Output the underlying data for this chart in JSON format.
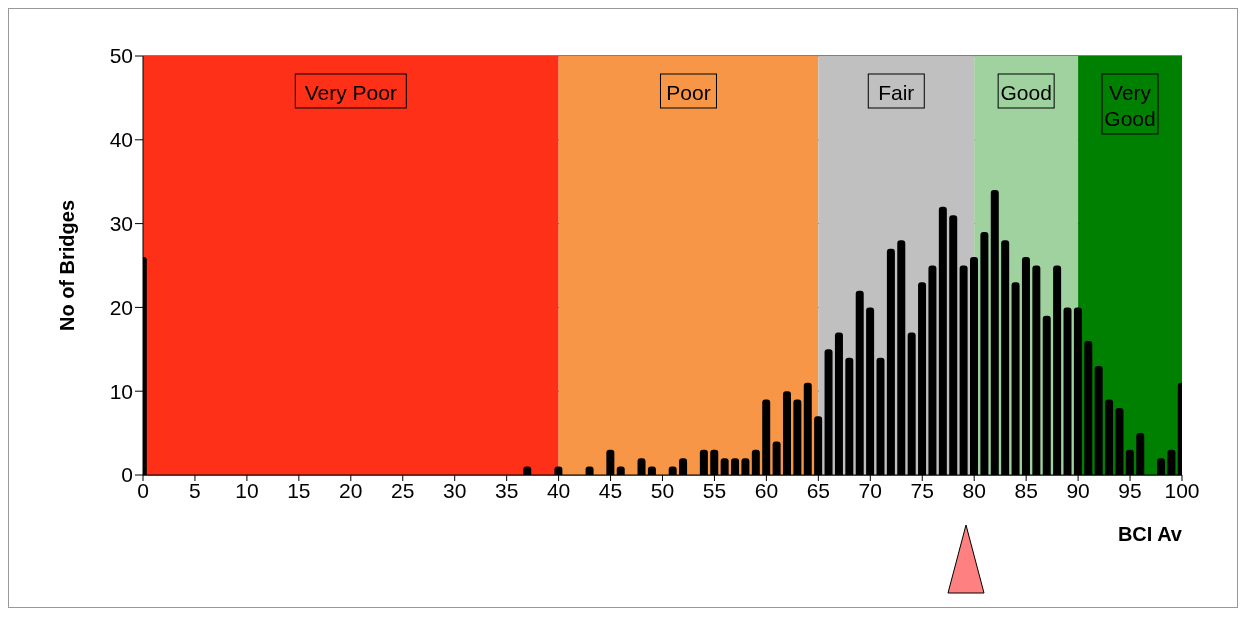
{
  "chart_data": {
    "type": "bar",
    "xlabel": "BCI Av",
    "ylabel": "No of Bridges",
    "x": [
      0,
      1,
      2,
      3,
      4,
      5,
      6,
      7,
      8,
      9,
      10,
      11,
      12,
      13,
      14,
      15,
      16,
      17,
      18,
      19,
      20,
      21,
      22,
      23,
      24,
      25,
      26,
      27,
      28,
      29,
      30,
      31,
      32,
      33,
      34,
      35,
      36,
      37,
      38,
      39,
      40,
      41,
      42,
      43,
      44,
      45,
      46,
      47,
      48,
      49,
      50,
      51,
      52,
      53,
      54,
      55,
      56,
      57,
      58,
      59,
      60,
      61,
      62,
      63,
      64,
      65,
      66,
      67,
      68,
      69,
      70,
      71,
      72,
      73,
      74,
      75,
      76,
      77,
      78,
      79,
      80,
      81,
      82,
      83,
      84,
      85,
      86,
      87,
      88,
      89,
      90,
      91,
      92,
      93,
      94,
      95,
      96,
      97,
      98,
      99,
      100
    ],
    "values": [
      26,
      0,
      0,
      0,
      0,
      0,
      0,
      0,
      0,
      0,
      0,
      0,
      0,
      0,
      0,
      0,
      0,
      0,
      0,
      0,
      0,
      0,
      0,
      0,
      0,
      0,
      0,
      0,
      0,
      0,
      0,
      0,
      0,
      0,
      0,
      0,
      0,
      1,
      0,
      0,
      1,
      0,
      0,
      1,
      0,
      3,
      1,
      0,
      2,
      1,
      0,
      1,
      2,
      0,
      3,
      3,
      2,
      2,
      2,
      3,
      9,
      4,
      10,
      9,
      11,
      7,
      15,
      17,
      14,
      22,
      20,
      14,
      27,
      28,
      17,
      23,
      25,
      32,
      31,
      25,
      26,
      29,
      34,
      28,
      23,
      26,
      25,
      19,
      25,
      20,
      20,
      16,
      13,
      9,
      8,
      3,
      5,
      0,
      2,
      3,
      11
    ],
    "color": "#000000",
    "xlim": [
      0,
      100
    ],
    "xticks": [
      0,
      5,
      10,
      15,
      20,
      25,
      30,
      35,
      40,
      45,
      50,
      55,
      60,
      65,
      70,
      75,
      80,
      85,
      90,
      95,
      100
    ],
    "ylim": [
      0,
      50
    ],
    "yticks": [
      0,
      10,
      20,
      30,
      40,
      50
    ],
    "grid": "y",
    "bands": [
      {
        "axis": "x",
        "from": 0,
        "to": 40,
        "label": "Very Poor",
        "color": "#ff3018"
      },
      {
        "axis": "x",
        "from": 40,
        "to": 65,
        "label": "Poor",
        "color": "#f79646"
      },
      {
        "axis": "x",
        "from": 65,
        "to": 80,
        "label": "Fair",
        "color": "#c0c0c0"
      },
      {
        "axis": "x",
        "from": 80,
        "to": 90,
        "label": "Good",
        "color": "#9fd29f"
      },
      {
        "axis": "x",
        "from": 90,
        "to": 100,
        "label": "Very Good",
        "color": "#008000"
      }
    ]
  }
}
